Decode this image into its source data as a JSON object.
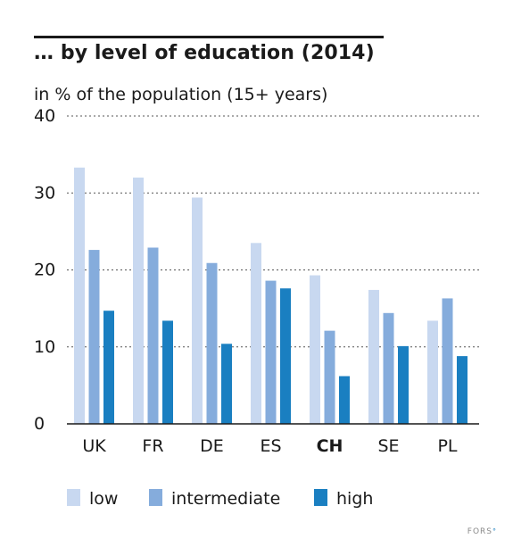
{
  "title": "… by level of education (2014)",
  "subtitle": "in % of the population (15+ years)",
  "footer": {
    "brand": "FORS",
    "mark": "°"
  },
  "colors": {
    "low": "#c8d8f0",
    "intermediate": "#85acdc",
    "high": "#1a7fc1",
    "grid": "#555555",
    "axis": "#1a1a1a"
  },
  "chart_data": {
    "type": "bar",
    "categories": [
      "UK",
      "FR",
      "DE",
      "ES",
      "CH",
      "SE",
      "PL"
    ],
    "highlight_category": "CH",
    "series": [
      {
        "name": "low",
        "values": [
          33.3,
          32.0,
          29.4,
          23.5,
          19.3,
          17.4,
          13.4
        ]
      },
      {
        "name": "intermediate",
        "values": [
          22.6,
          22.9,
          20.9,
          18.6,
          12.1,
          14.4,
          16.3
        ]
      },
      {
        "name": "high",
        "values": [
          14.7,
          13.4,
          10.4,
          17.6,
          6.2,
          10.1,
          8.8
        ]
      }
    ],
    "ylim": [
      0,
      40
    ],
    "yticks": [
      "0",
      "10",
      "20",
      "30",
      "40"
    ],
    "grid": true,
    "legend_position": "bottom"
  }
}
